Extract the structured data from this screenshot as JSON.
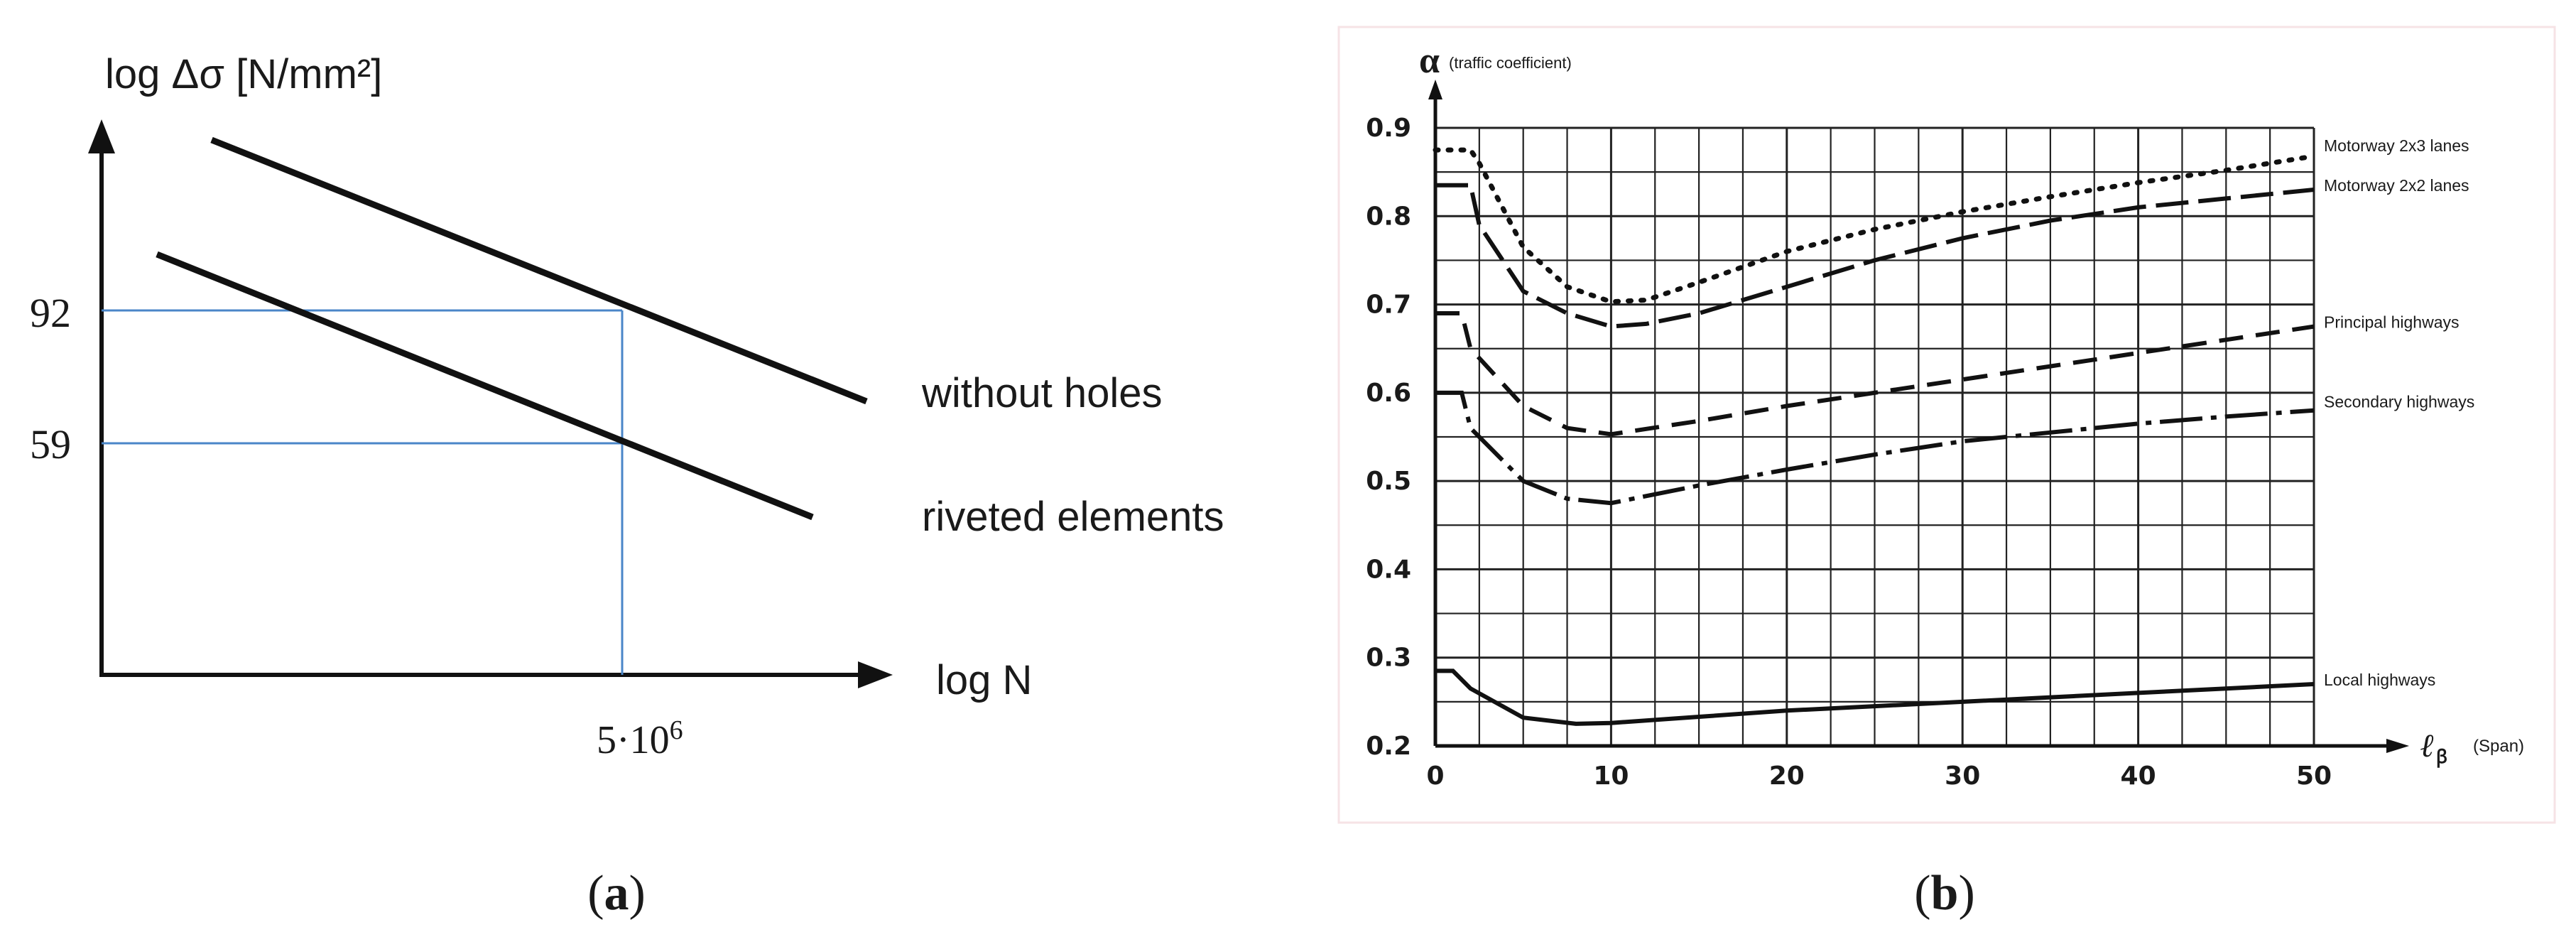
{
  "panels": {
    "a": {
      "caption_label": "a",
      "caption_open": "(",
      "caption_close": ")"
    },
    "b": {
      "caption_label": "b",
      "caption_open": "(",
      "caption_close": ")"
    }
  },
  "colors": {
    "lines": "#111111",
    "guides": "#4a86c8",
    "grid": "#222222",
    "background": "#ffffff"
  },
  "chart_data": [
    {
      "type": "line",
      "panel": "a",
      "ylabel": "log Δσ [N/mm²]",
      "xlabel": "log N",
      "log_scale": true,
      "grid": false,
      "series": [
        {
          "name": "without holes",
          "reference_point": {
            "x": 5000000,
            "y": 92
          }
        },
        {
          "name": "riveted elements",
          "reference_point": {
            "x": 5000000,
            "y": 59
          }
        }
      ],
      "yticks": [
        {
          "value": 92,
          "label": "92"
        },
        {
          "value": 59,
          "label": "59"
        }
      ],
      "xticks": [
        {
          "value": 5000000,
          "label_base": "5·10",
          "label_exp": "6"
        }
      ],
      "legend": "right of lines"
    },
    {
      "type": "line",
      "panel": "b",
      "ylabel": "α",
      "ylabel_note": "(traffic coefficient)",
      "xlabel": "ℓ",
      "xlabel_sub": "ꞵ",
      "xlabel_note": "(Span)",
      "xlim": [
        0,
        50
      ],
      "ylim": [
        0.2,
        0.9
      ],
      "grid": true,
      "xticks": [
        "0",
        "10",
        "20",
        "30",
        "40",
        "50"
      ],
      "yticks": [
        "0.2",
        "0.3",
        "0.4",
        "0.5",
        "0.6",
        "0.7",
        "0.8",
        "0.9"
      ],
      "legend": "right end of each curve",
      "series": [
        {
          "name": "Motorway 2x3 lanes",
          "style": "dotted",
          "x": [
            0,
            2,
            2.5,
            5,
            7.5,
            10,
            12,
            15,
            20,
            25,
            30,
            35,
            40,
            45,
            50
          ],
          "y": [
            0.875,
            0.875,
            0.86,
            0.765,
            0.72,
            0.703,
            0.705,
            0.725,
            0.76,
            0.785,
            0.805,
            0.822,
            0.838,
            0.852,
            0.868
          ]
        },
        {
          "name": "Motorway 2x2 lanes",
          "style": "long-dash",
          "x": [
            0,
            2,
            2.5,
            5,
            7.5,
            10,
            12,
            15,
            20,
            25,
            30,
            35,
            40,
            45,
            50
          ],
          "y": [
            0.835,
            0.835,
            0.79,
            0.715,
            0.69,
            0.675,
            0.678,
            0.69,
            0.72,
            0.75,
            0.775,
            0.795,
            0.81,
            0.82,
            0.83
          ]
        },
        {
          "name": "Principal highways",
          "style": "dashed",
          "x": [
            0,
            1.5,
            2,
            5,
            7.5,
            10,
            15,
            20,
            25,
            30,
            35,
            40,
            45,
            50
          ],
          "y": [
            0.69,
            0.69,
            0.65,
            0.585,
            0.56,
            0.553,
            0.568,
            0.585,
            0.6,
            0.615,
            0.63,
            0.645,
            0.66,
            0.675
          ]
        },
        {
          "name": "Secondary highways",
          "style": "dash-dot",
          "x": [
            0,
            1.5,
            2,
            5,
            7.5,
            10,
            15,
            20,
            25,
            30,
            35,
            40,
            45,
            50
          ],
          "y": [
            0.6,
            0.6,
            0.56,
            0.5,
            0.48,
            0.475,
            0.495,
            0.513,
            0.53,
            0.545,
            0.555,
            0.565,
            0.573,
            0.58
          ]
        },
        {
          "name": "Local highways",
          "style": "solid",
          "x": [
            0,
            1,
            2,
            5,
            8,
            10,
            15,
            20,
            25,
            30,
            35,
            40,
            45,
            50
          ],
          "y": [
            0.285,
            0.285,
            0.265,
            0.232,
            0.225,
            0.226,
            0.233,
            0.24,
            0.245,
            0.25,
            0.255,
            0.26,
            0.265,
            0.27
          ]
        }
      ]
    }
  ]
}
